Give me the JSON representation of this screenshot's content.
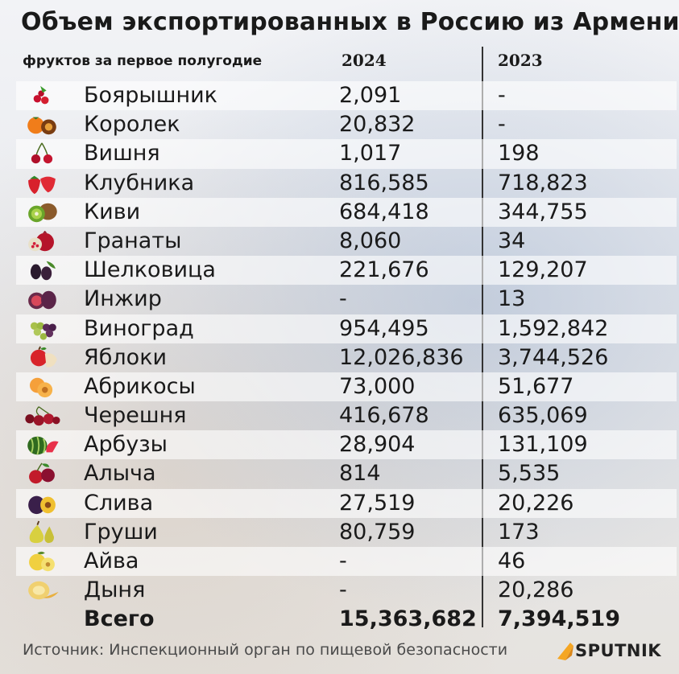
{
  "header": {
    "title": "Объем экспортированных в Россию из Армении",
    "subtitle": "фруктов за первое полугодие"
  },
  "chart_data": {
    "type": "table",
    "title": "Объем экспортированных в Россию из Армении фруктов за первое полугодие",
    "columns": [
      "2024",
      "2023"
    ],
    "rows": [
      {
        "name": "Боярышник",
        "icon": "hawthorn-icon",
        "v2024": "2,091",
        "v2023": "-"
      },
      {
        "name": "Королек",
        "icon": "persimmon-icon",
        "v2024": "20,832",
        "v2023": "-"
      },
      {
        "name": "Вишня",
        "icon": "cherry-icon",
        "v2024": "1,017",
        "v2023": "198"
      },
      {
        "name": "Клубника",
        "icon": "strawberry-icon",
        "v2024": "816,585",
        "v2023": "718,823"
      },
      {
        "name": "Киви",
        "icon": "kiwi-icon",
        "v2024": "684,418",
        "v2023": "344,755"
      },
      {
        "name": "Гранаты",
        "icon": "pomegranate-icon",
        "v2024": "8,060",
        "v2023": "34"
      },
      {
        "name": "Шелковица",
        "icon": "mulberry-icon",
        "v2024": "221,676",
        "v2023": "129,207"
      },
      {
        "name": "Инжир",
        "icon": "fig-icon",
        "v2024": "-",
        "v2023": "13"
      },
      {
        "name": "Виноград",
        "icon": "grape-icon",
        "v2024": "954,495",
        "v2023": "1,592,842"
      },
      {
        "name": "Яблоки",
        "icon": "apple-icon",
        "v2024": "12,026,836",
        "v2023": "3,744,526"
      },
      {
        "name": "Абрикосы",
        "icon": "apricot-icon",
        "v2024": "73,000",
        "v2023": "51,677"
      },
      {
        "name": "Черешня",
        "icon": "sweet-cherry-icon",
        "v2024": "416,678",
        "v2023": "635,069"
      },
      {
        "name": "Арбузы",
        "icon": "watermelon-icon",
        "v2024": "28,904",
        "v2023": "131,109"
      },
      {
        "name": "Алыча",
        "icon": "cherry-plum-icon",
        "v2024": "814",
        "v2023": "5,535"
      },
      {
        "name": "Слива",
        "icon": "plum-icon",
        "v2024": "27,519",
        "v2023": "20,226"
      },
      {
        "name": "Груши",
        "icon": "pear-icon",
        "v2024": "80,759",
        "v2023": "173"
      },
      {
        "name": "Айва",
        "icon": "quince-icon",
        "v2024": "-",
        "v2023": "46"
      },
      {
        "name": "Дыня",
        "icon": "melon-icon",
        "v2024": "-",
        "v2023": "20,286"
      }
    ],
    "total": {
      "name": "Всего",
      "v2024": "15,363,682",
      "v2023": "7,394,519"
    }
  },
  "footer": {
    "source": "Источник: Инспекционный орган по пищевой безопасности",
    "logo": "SPUTNIK"
  },
  "colors": {
    "row_alt": "#ffffff",
    "divider": "#333333",
    "logo_accent": "#f5a623"
  }
}
